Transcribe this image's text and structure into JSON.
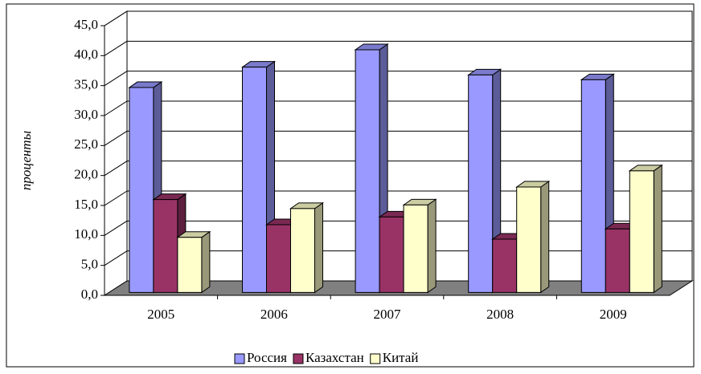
{
  "chart_data": {
    "type": "bar3d",
    "y_label": "проценты",
    "categories": [
      "2005",
      "2006",
      "2007",
      "2008",
      "2009"
    ],
    "series": [
      {
        "name": "Россия",
        "color": "#9999ff",
        "values": [
          34.2,
          37.6,
          40.5,
          36.3,
          35.5
        ]
      },
      {
        "name": "Казахстан",
        "color": "#993366",
        "values": [
          15.5,
          11.3,
          12.6,
          8.9,
          10.6
        ]
      },
      {
        "name": "Китай",
        "color": "#ffffcc",
        "values": [
          9.2,
          14.0,
          14.6,
          17.6,
          20.3
        ]
      }
    ],
    "ylim": [
      0,
      45
    ],
    "yticks": [
      {
        "value": 0,
        "label": "0,0"
      },
      {
        "value": 5,
        "label": "5,0"
      },
      {
        "value": 10,
        "label": "10,0"
      },
      {
        "value": 15,
        "label": "15,0"
      },
      {
        "value": 20,
        "label": "20,0"
      },
      {
        "value": 25,
        "label": "25,0"
      },
      {
        "value": 30,
        "label": "30,0"
      },
      {
        "value": 35,
        "label": "35,0"
      },
      {
        "value": 40,
        "label": "40,0"
      },
      {
        "value": 45,
        "label": "45,0"
      }
    ],
    "grid": true,
    "legend": "bottom"
  }
}
